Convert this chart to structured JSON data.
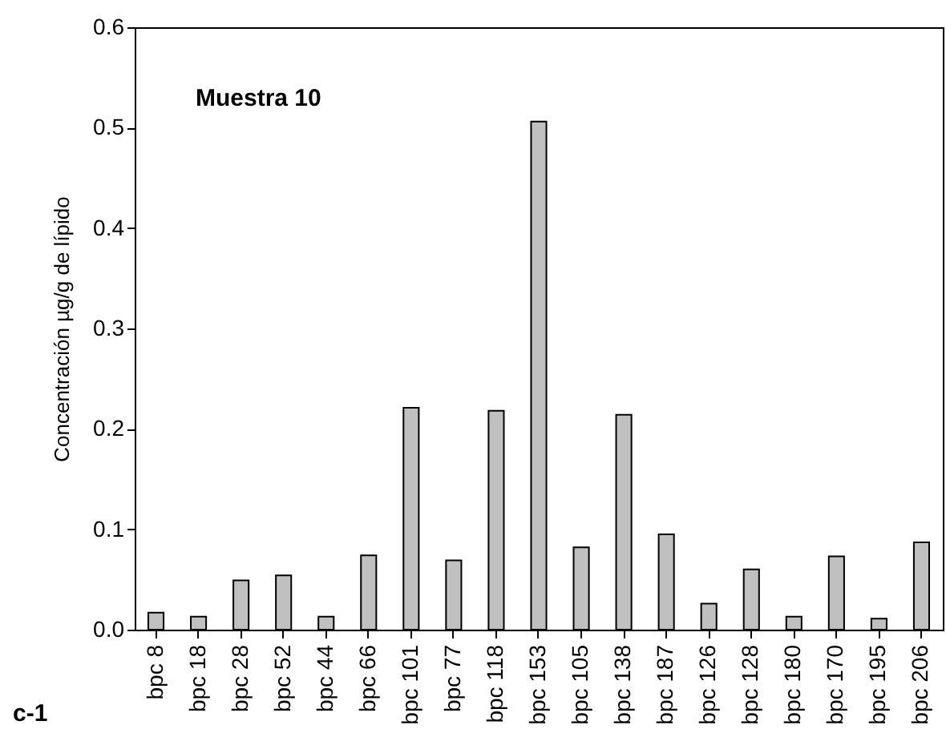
{
  "chart_data": {
    "type": "bar",
    "ylabel": "Concentración µg/g de lípido",
    "annotations": [
      "Muestra 10",
      "c-1"
    ],
    "categories": [
      "bpc 8",
      "bpc 18",
      "bpc 28",
      "bpc 52",
      "bpc 44",
      "bpc 66",
      "bpc 101",
      "bpc 77",
      "bpc 118",
      "bpc 153",
      "bpc 105",
      "bpc 138",
      "bpc 187",
      "bpc 126",
      "bpc 128",
      "bpc 180",
      "bpc 170",
      "bpc 195",
      "bpc 206"
    ],
    "values": [
      0.017,
      0.013,
      0.049,
      0.054,
      0.013,
      0.074,
      0.221,
      0.069,
      0.218,
      0.506,
      0.082,
      0.214,
      0.095,
      0.026,
      0.06,
      0.013,
      0.073,
      0.011,
      0.087
    ],
    "color": "#c0c0c0",
    "ylim": [
      0,
      0.6
    ],
    "yticks": [
      {
        "value": 0,
        "label": "0.0"
      },
      0.1,
      0.2,
      0.3,
      0.4,
      0.5,
      0.6
    ],
    "grid": false
  }
}
